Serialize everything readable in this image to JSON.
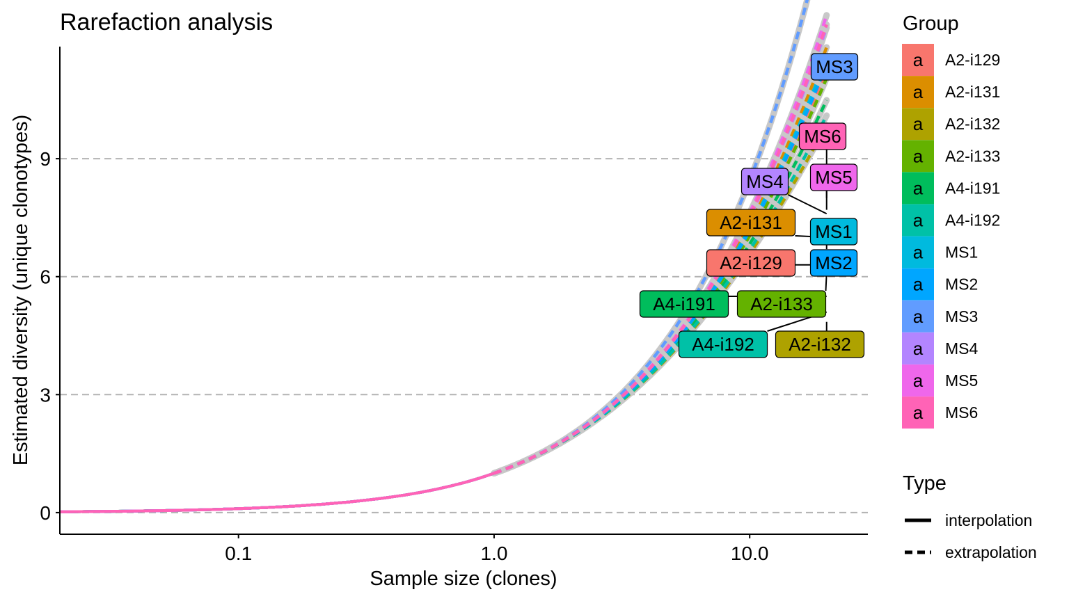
{
  "chart_data": {
    "type": "line",
    "title": "Rarefaction analysis",
    "xlabel": "Sample size (clones)",
    "ylabel": "Estimated diversity (unique clonotypes)",
    "x_scale": "log10",
    "xlim": [
      0.02,
      29
    ],
    "ylim": [
      -0.55,
      11.85
    ],
    "x_ticks": [
      {
        "value": 0.1,
        "label": "0.1"
      },
      {
        "value": 1.0,
        "label": "1.0"
      },
      {
        "value": 10.0,
        "label": "10.0"
      }
    ],
    "y_ticks": [
      {
        "value": 0,
        "label": "0"
      },
      {
        "value": 3,
        "label": "3"
      },
      {
        "value": 6,
        "label": "6"
      },
      {
        "value": 9,
        "label": "9"
      }
    ],
    "grid": "horizontal-dashed",
    "legend": {
      "group_title": "Group",
      "key_letter": "a",
      "type_title": "Type",
      "type_entries": [
        {
          "label": "interpolation",
          "dash": "solid"
        },
        {
          "label": "extrapolation",
          "dash": "dashed"
        }
      ],
      "placement": "right"
    },
    "series": [
      {
        "name": "A2-i129",
        "color": "#F8766D",
        "end_x": 20,
        "end_y": 6.3
      },
      {
        "name": "A2-i131",
        "color": "#DB8E00",
        "end_x": 20,
        "end_y": 7.0
      },
      {
        "name": "A2-i132",
        "color": "#AEA200",
        "end_x": 20,
        "end_y": 4.85
      },
      {
        "name": "A2-i133",
        "color": "#64B200",
        "end_x": 20,
        "end_y": 6.1
      },
      {
        "name": "A4-i191",
        "color": "#00BD5C",
        "end_x": 20,
        "end_y": 5.5
      },
      {
        "name": "A4-i192",
        "color": "#00C1A7",
        "end_x": 20,
        "end_y": 5.1
      },
      {
        "name": "MS1",
        "color": "#00BADE",
        "end_x": 20,
        "end_y": 6.7
      },
      {
        "name": "MS2",
        "color": "#00A6FF",
        "end_x": 20,
        "end_y": 6.5
      },
      {
        "name": "MS3",
        "color": "#619CFF",
        "end_x": 20,
        "end_y": 11.3
      },
      {
        "name": "MS4",
        "color": "#B385FF",
        "end_x": 20,
        "end_y": 7.6
      },
      {
        "name": "MS5",
        "color": "#EF67EB",
        "end_x": 20,
        "end_y": 8.0
      },
      {
        "name": "MS6",
        "color": "#FF63B6",
        "end_x": 20,
        "end_y": 7.7
      }
    ],
    "interpolation": {
      "x_start": 0.02,
      "x_end": 1.0,
      "y_start": 0.02,
      "y_end": 1.0
    },
    "end_labels": [
      {
        "label": "MS3",
        "x": 20,
        "y": 11.3
      },
      {
        "label": "MS6",
        "x": 20,
        "y": 7.7
      },
      {
        "label": "MS5",
        "x": 20,
        "y": 8.0
      },
      {
        "label": "MS4",
        "x": 20,
        "y": 7.6
      },
      {
        "label": "A2-i131",
        "x": 20,
        "y": 7.0
      },
      {
        "label": "MS1",
        "x": 20,
        "y": 6.7
      },
      {
        "label": "A2-i129",
        "x": 20,
        "y": 6.3
      },
      {
        "label": "MS2",
        "x": 20,
        "y": 6.5
      },
      {
        "label": "A4-i191",
        "x": 20,
        "y": 5.5
      },
      {
        "label": "A2-i133",
        "x": 20,
        "y": 6.1
      },
      {
        "label": "A4-i192",
        "x": 20,
        "y": 5.1
      },
      {
        "label": "A2-i132",
        "x": 20,
        "y": 4.85
      }
    ]
  }
}
